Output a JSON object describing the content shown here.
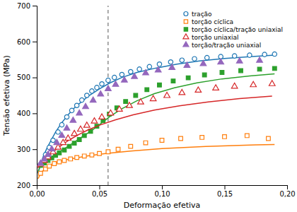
{
  "chart_data": {
    "type": "scatter",
    "xlabel": "Deformação efetiva",
    "ylabel": "Tensão efetiva (MPa)",
    "xlim": [
      0.0,
      0.2
    ],
    "ylim": [
      200,
      700
    ],
    "xticks": [
      {
        "value": 0.0,
        "label": "0,00"
      },
      {
        "value": 0.05,
        "label": "0,05"
      },
      {
        "value": 0.1,
        "label": "0,10"
      },
      {
        "value": 0.15,
        "label": "0,15"
      },
      {
        "value": 0.2,
        "label": "0,20"
      }
    ],
    "yticks": [
      200,
      300,
      400,
      500,
      600,
      700
    ],
    "vline_x": 0.057,
    "legend": "upper-right",
    "series": [
      {
        "name": "tração",
        "marker": "circle-open",
        "x": [
          0.003,
          0.007,
          0.01,
          0.013,
          0.017,
          0.02,
          0.024,
          0.028,
          0.032,
          0.036,
          0.04,
          0.044,
          0.048,
          0.052,
          0.057,
          0.062,
          0.068,
          0.075,
          0.082,
          0.09,
          0.098,
          0.107,
          0.116,
          0.126,
          0.136,
          0.147,
          0.158,
          0.17,
          0.182,
          0.19
        ],
        "values": [
          258,
          285,
          305,
          325,
          348,
          368,
          390,
          408,
          422,
          437,
          450,
          462,
          472,
          482,
          492,
          500,
          508,
          516,
          523,
          530,
          537,
          543,
          548,
          552,
          555,
          558,
          560,
          562,
          564,
          565
        ],
        "curve": {
          "x": [
            0.001,
            0.003,
            0.005,
            0.008,
            0.011,
            0.015,
            0.02,
            0.025,
            0.03,
            0.036,
            0.042,
            0.05,
            0.058,
            0.068,
            0.08,
            0.095,
            0.112,
            0.13,
            0.15,
            0.17,
            0.19
          ],
          "values": [
            233,
            258,
            278,
            302,
            322,
            348,
            374,
            396,
            415,
            433,
            450,
            468,
            484,
            500,
            514,
            526,
            537,
            546,
            553,
            558,
            562
          ]
        }
      },
      {
        "name": "torção cíclica",
        "marker": "square-open",
        "x": [
          0.003,
          0.007,
          0.01,
          0.014,
          0.018,
          0.022,
          0.027,
          0.032,
          0.038,
          0.044,
          0.05,
          0.057,
          0.065,
          0.075,
          0.087,
          0.1,
          0.115,
          0.132,
          0.15,
          0.168,
          0.185
        ],
        "values": [
          233,
          245,
          253,
          260,
          265,
          269,
          273,
          277,
          281,
          284,
          288,
          293,
          300,
          308,
          318,
          325,
          330,
          333,
          335,
          338,
          330
        ],
        "curve": {
          "x": [
            0.001,
            0.003,
            0.006,
            0.01,
            0.015,
            0.022,
            0.03,
            0.04,
            0.055,
            0.075,
            0.1,
            0.135,
            0.175,
            0.19
          ],
          "values": [
            218,
            232,
            244,
            255,
            263,
            270,
            275,
            281,
            288,
            295,
            302,
            308,
            312,
            313
          ]
        }
      },
      {
        "name": "torção cíclica/tração uniaxial",
        "marker": "square",
        "x": [
          0.003,
          0.006,
          0.009,
          0.012,
          0.015,
          0.018,
          0.022,
          0.026,
          0.03,
          0.034,
          0.038,
          0.043,
          0.048,
          0.053,
          0.058,
          0.064,
          0.071,
          0.079,
          0.088,
          0.098,
          0.109,
          0.121,
          0.134,
          0.148,
          0.163,
          0.178,
          0.19
        ],
        "values": [
          255,
          262,
          269,
          276,
          283,
          290,
          298,
          308,
          317,
          327,
          338,
          350,
          364,
          380,
          398,
          415,
          433,
          450,
          466,
          479,
          490,
          499,
          507,
          514,
          519,
          523,
          525
        ],
        "curve": {
          "x": [
            0.001,
            0.003,
            0.006,
            0.009,
            0.012,
            0.016,
            0.02,
            0.025,
            0.03,
            0.036,
            0.043,
            0.05,
            0.058,
            0.068,
            0.08,
            0.094,
            0.11,
            0.128,
            0.148,
            0.17,
            0.19
          ],
          "values": [
            238,
            255,
            265,
            272,
            279,
            288,
            297,
            308,
            320,
            334,
            350,
            368,
            390,
            413,
            435,
            455,
            471,
            485,
            496,
            504,
            510
          ]
        }
      },
      {
        "name": "torção uniaxial",
        "marker": "triangle-open",
        "x": [
          0.003,
          0.006,
          0.009,
          0.013,
          0.017,
          0.021,
          0.025,
          0.03,
          0.035,
          0.04,
          0.046,
          0.052,
          0.059,
          0.066,
          0.074,
          0.083,
          0.093,
          0.104,
          0.116,
          0.129,
          0.143,
          0.158,
          0.173,
          0.188
        ],
        "values": [
          258,
          268,
          278,
          292,
          305,
          318,
          330,
          343,
          355,
          366,
          378,
          389,
          400,
          411,
          421,
          431,
          440,
          449,
          457,
          464,
          470,
          475,
          479,
          482
        ],
        "curve": {
          "x": [
            0.001,
            0.003,
            0.006,
            0.01,
            0.015,
            0.02,
            0.026,
            0.033,
            0.041,
            0.051,
            0.063,
            0.077,
            0.094,
            0.114,
            0.137,
            0.162,
            0.188
          ],
          "values": [
            248,
            260,
            270,
            283,
            298,
            312,
            326,
            340,
            354,
            368,
            382,
            396,
            409,
            421,
            432,
            441,
            448
          ]
        }
      },
      {
        "name": "torção/tração uniaxial",
        "marker": "triangle",
        "x": [
          0.003,
          0.006,
          0.009,
          0.012,
          0.016,
          0.02,
          0.024,
          0.029,
          0.034,
          0.039,
          0.045,
          0.051,
          0.057,
          0.063,
          0.07,
          0.078,
          0.087,
          0.097,
          0.108,
          0.12,
          0.133,
          0.147,
          0.162,
          0.178
        ],
        "values": [
          260,
          272,
          285,
          300,
          318,
          338,
          358,
          380,
          400,
          418,
          436,
          453,
          468,
          480,
          492,
          502,
          512,
          520,
          527,
          533,
          538,
          542,
          545,
          547
        ]
      }
    ]
  }
}
